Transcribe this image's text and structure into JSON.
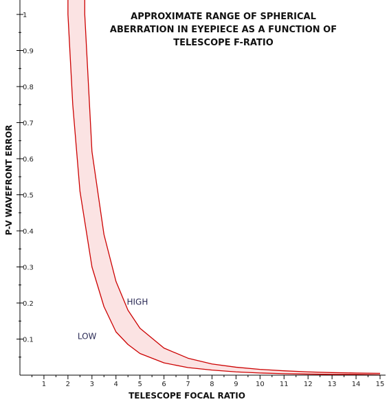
{
  "chart_data": {
    "type": "line",
    "title_lines": [
      "APPROXIMATE RANGE OF SPHERICAL",
      "ABERRATION IN EYEPIECE AS A FUNCTION OF",
      "TELESCOPE F-RATIO"
    ],
    "xlabel": "TELESCOPE  FOCAL  RATIO",
    "ylabel": "P-V WAVEFRONT ERROR",
    "xlim": [
      0,
      15
    ],
    "ylim": [
      0,
      1
    ],
    "x_ticks": [
      1,
      2,
      3,
      4,
      5,
      6,
      7,
      8,
      9,
      10,
      11,
      12,
      13,
      14,
      15
    ],
    "y_ticks": [
      0.1,
      0.2,
      0.3,
      0.4,
      0.5,
      0.6,
      0.7,
      0.8,
      0.9,
      1
    ],
    "band_fill": "#fbe3e3",
    "line_color": "#cc0000",
    "series": [
      {
        "name": "HIGH",
        "x": [
          2.7,
          3,
          3.5,
          4,
          4.5,
          5,
          6,
          7,
          8,
          9,
          10,
          11,
          12,
          13,
          14,
          15
        ],
        "y": [
          1.0,
          0.62,
          0.39,
          0.26,
          0.18,
          0.13,
          0.075,
          0.047,
          0.031,
          0.022,
          0.016,
          0.012,
          0.009,
          0.007,
          0.006,
          0.005
        ]
      },
      {
        "name": "LOW",
        "x": [
          2.0,
          2.2,
          2.5,
          3,
          3.5,
          4,
          4.5,
          5,
          6,
          7,
          8,
          9,
          10,
          11,
          12,
          13,
          14,
          15
        ],
        "y": [
          1.0,
          0.75,
          0.51,
          0.3,
          0.19,
          0.12,
          0.085,
          0.06,
          0.034,
          0.021,
          0.014,
          0.009,
          0.006,
          0.004,
          0.003,
          0.002,
          0.002,
          0.001
        ]
      }
    ],
    "annotations": [
      {
        "text": "HIGH",
        "x": 4.45,
        "y": 0.195
      },
      {
        "text": "LOW",
        "x": 2.4,
        "y": 0.1
      }
    ],
    "grid": false,
    "legend": "none"
  }
}
